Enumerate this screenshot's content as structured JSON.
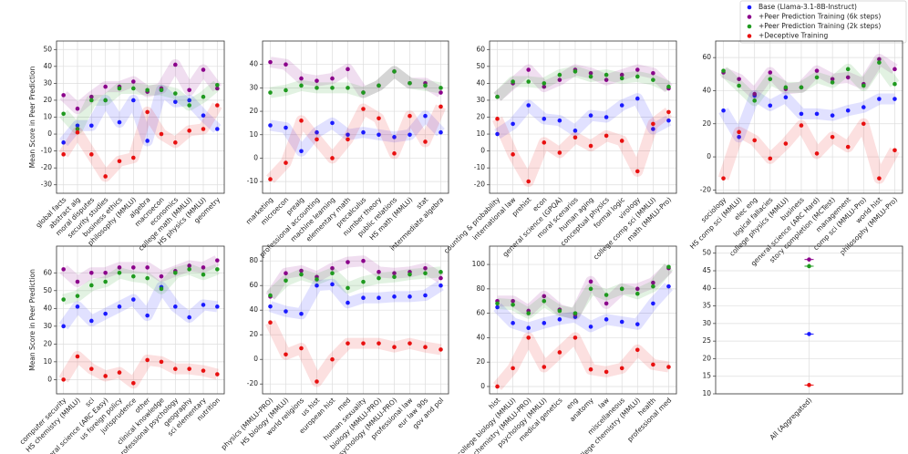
{
  "chart_data": [
    {
      "type": "scatter",
      "ylabel": "Mean Score in Peer Prediction",
      "categories": [
        "global facts",
        "abstract alg",
        "moral disputes",
        "security studies",
        "business ethics",
        "philosophy (MMLU)",
        "algebra",
        "macroecon",
        "economics",
        "college math (MMLU)",
        "HS physics (MMLU)",
        "geometry"
      ],
      "ylim": [
        -35,
        55
      ],
      "yticks": [
        -30,
        -20,
        -10,
        0,
        10,
        20,
        30,
        40,
        50
      ],
      "series": [
        {
          "name": "Base (Llama-3.1-8B-Instruct)",
          "color": "#1a1aff",
          "values": [
            -5,
            5,
            5,
            20,
            7,
            20,
            -4,
            26,
            19,
            20,
            11,
            3
          ]
        },
        {
          "name": "+Peer Prediction Training (6k steps)",
          "color": "#8b008b",
          "values": [
            23,
            15,
            22,
            28,
            28,
            31,
            25,
            27,
            41,
            26,
            38,
            27
          ]
        },
        {
          "name": "+Peer Prediction Training (2k steps)",
          "color": "#1f9a1f",
          "values": [
            12,
            3,
            20,
            20,
            27,
            27,
            26,
            26,
            24,
            17,
            22,
            29
          ]
        },
        {
          "name": "+Deceptive Training",
          "color": "#e81010",
          "values": [
            -12,
            1,
            -12,
            -25,
            -16,
            -14,
            13,
            0,
            -5,
            2,
            3,
            17
          ]
        }
      ]
    },
    {
      "type": "scatter",
      "categories": [
        "marketing",
        "microecon",
        "prealg",
        "professional accounting",
        "machine learning",
        "elementary math",
        "precalculus",
        "number theory",
        "public relations",
        "HS math (MMLU)",
        "stat",
        "intermediate algebra"
      ],
      "ylim": [
        -15,
        50
      ],
      "yticks": [
        -10,
        0,
        10,
        20,
        30,
        40
      ],
      "series": [
        {
          "color": "#1a1aff",
          "values": [
            14,
            13,
            3,
            11,
            15,
            10,
            11,
            10,
            9,
            10,
            18,
            11
          ]
        },
        {
          "color": "#8b008b",
          "values": [
            41,
            40,
            34,
            33,
            34,
            38,
            28,
            31,
            37,
            32,
            32,
            28
          ]
        },
        {
          "color": "#1f9a1f",
          "values": [
            28,
            29,
            31,
            30,
            30,
            30,
            28,
            31,
            37,
            32,
            31,
            30
          ]
        },
        {
          "color": "#e81010",
          "values": [
            -9,
            -2,
            16,
            8,
            0,
            8,
            21,
            17,
            2,
            18,
            7,
            22
          ]
        }
      ]
    },
    {
      "type": "scatter",
      "categories": [
        "counting & probability",
        "international law",
        "prehist",
        "econ",
        "general science (GPQA)",
        "moral scenarios",
        "human aging",
        "conceptual physics",
        "formal logic",
        "virology",
        "college comp sci (MMLU)",
        "math (MMLU-Pro)"
      ],
      "ylim": [
        -25,
        65
      ],
      "yticks": [
        -20,
        -10,
        0,
        10,
        20,
        30,
        40,
        50,
        60
      ],
      "series": [
        {
          "color": "#1a1aff",
          "values": [
            10,
            16,
            27,
            19,
            18,
            12,
            21,
            20,
            27,
            31,
            13,
            18
          ]
        },
        {
          "color": "#8b008b",
          "values": [
            32,
            40,
            48,
            38,
            42,
            48,
            46,
            42,
            45,
            48,
            46,
            37
          ]
        },
        {
          "color": "#1f9a1f",
          "values": [
            32,
            41,
            41,
            40,
            45,
            47,
            44,
            45,
            43,
            44,
            42,
            38
          ]
        },
        {
          "color": "#e81010",
          "values": [
            19,
            -2,
            -18,
            5,
            -1,
            8,
            3,
            9,
            6,
            -12,
            16,
            23
          ]
        }
      ]
    },
    {
      "type": "scatter",
      "categories": [
        "sociology",
        "HS comp sci (MMLU)",
        "elec eng",
        "logical fallacies",
        "college physics (MMLU)",
        "business",
        "general science (ARC Hard)",
        "story completion (MCTest)",
        "management",
        "comp sci (MMLU-Pro)",
        "world hist",
        "philosophy (MMLU-Pro)"
      ],
      "ylim": [
        -22,
        70
      ],
      "yticks": [
        -20,
        0,
        20,
        40,
        60
      ],
      "series": [
        {
          "color": "#1a1aff",
          "values": [
            28,
            12,
            37,
            31,
            36,
            26,
            26,
            25,
            28,
            30,
            35,
            35
          ]
        },
        {
          "color": "#8b008b",
          "values": [
            51,
            47,
            38,
            51,
            41,
            42,
            52,
            47,
            48,
            44,
            59,
            53
          ]
        },
        {
          "color": "#1f9a1f",
          "values": [
            52,
            43,
            34,
            47,
            42,
            42,
            48,
            45,
            53,
            43,
            57,
            44
          ]
        },
        {
          "color": "#e81010",
          "values": [
            -13,
            15,
            10,
            -1,
            8,
            19,
            2,
            12,
            6,
            20,
            -13,
            4
          ]
        }
      ]
    },
    {
      "type": "scatter",
      "ylabel": "Mean Score in Peer Prediction",
      "categories": [
        "computer security",
        "HS chemistry (MMLU)",
        "sci",
        "general science (ARC Easy)",
        "us foreign policy",
        "jurisprudence",
        "other",
        "clinical knowledge",
        "professional psychology",
        "geography",
        "sci elementary",
        "nutrition"
      ],
      "ylim": [
        -8,
        75
      ],
      "yticks": [
        0,
        10,
        20,
        30,
        40,
        50,
        60
      ],
      "series": [
        {
          "color": "#1a1aff",
          "values": [
            30,
            41,
            33,
            37,
            41,
            45,
            36,
            52,
            41,
            35,
            42,
            41
          ]
        },
        {
          "color": "#8b008b",
          "values": [
            62,
            55,
            60,
            60,
            63,
            63,
            63,
            58,
            61,
            64,
            63,
            67
          ]
        },
        {
          "color": "#1f9a1f",
          "values": [
            45,
            47,
            53,
            55,
            60,
            58,
            57,
            51,
            60,
            62,
            59,
            62
          ]
        },
        {
          "color": "#e81010",
          "values": [
            0,
            13,
            6,
            2,
            4,
            -2,
            11,
            10,
            6,
            6,
            5,
            3
          ]
        }
      ]
    },
    {
      "type": "scatter",
      "categories": [
        "physics (MMLU-PRO)",
        "HS biology (MMLU)",
        "world religions",
        "us hist",
        "european hist",
        "med",
        "human sexuality",
        "biology (MMLU-PRO)",
        "psychology (MMLU-PRO)",
        "professional law",
        "eur law 90s",
        "gov and pol"
      ],
      "ylim": [
        -28,
        92
      ],
      "yticks": [
        -20,
        0,
        20,
        40,
        60,
        80
      ],
      "series": [
        {
          "color": "#1a1aff",
          "values": [
            43,
            39,
            37,
            60,
            61,
            46,
            50,
            50,
            51,
            51,
            52,
            60
          ]
        },
        {
          "color": "#8b008b",
          "values": [
            51,
            70,
            72,
            67,
            74,
            79,
            80,
            71,
            70,
            71,
            74,
            66
          ]
        },
        {
          "color": "#1f9a1f",
          "values": [
            52,
            64,
            69,
            65,
            70,
            58,
            63,
            66,
            67,
            69,
            70,
            71
          ]
        },
        {
          "color": "#e81010",
          "values": [
            30,
            4,
            9,
            -18,
            0,
            13,
            13,
            13,
            10,
            13,
            10,
            8
          ]
        }
      ]
    },
    {
      "type": "scatter",
      "categories": [
        "hist",
        "college biology (MMLU)",
        "chemistry (MMLU-PRO)",
        "psychology (MMLU)",
        "medical genetics",
        "eng",
        "anatomy",
        "law",
        "miscellaneous",
        "college chemistry (MMLU)",
        "health",
        "professional med"
      ],
      "ylim": [
        -6,
        115
      ],
      "yticks": [
        0,
        20,
        40,
        60,
        80,
        100
      ],
      "series": [
        {
          "color": "#1a1aff",
          "values": [
            65,
            52,
            48,
            52,
            55,
            57,
            49,
            55,
            53,
            51,
            68,
            82
          ]
        },
        {
          "color": "#8b008b",
          "values": [
            70,
            70,
            62,
            74,
            63,
            59,
            86,
            68,
            80,
            80,
            85,
            97
          ]
        },
        {
          "color": "#1f9a1f",
          "values": [
            68,
            67,
            60,
            70,
            62,
            60,
            80,
            75,
            80,
            76,
            82,
            98
          ]
        },
        {
          "color": "#e81010",
          "values": [
            0,
            15,
            40,
            16,
            28,
            40,
            14,
            12,
            15,
            30,
            18,
            16
          ]
        }
      ]
    },
    {
      "type": "scatter",
      "categories": [
        "All (Aggregated)"
      ],
      "ylim": [
        10,
        52
      ],
      "yticks": [
        10,
        15,
        20,
        25,
        30,
        35,
        40,
        45,
        50
      ],
      "series": [
        {
          "color": "#1a1aff",
          "values": [
            27
          ]
        },
        {
          "color": "#8b008b",
          "values": [
            48.2
          ]
        },
        {
          "color": "#1f9a1f",
          "values": [
            46.3
          ]
        },
        {
          "color": "#e81010",
          "values": [
            12.5
          ]
        }
      ]
    }
  ]
}
